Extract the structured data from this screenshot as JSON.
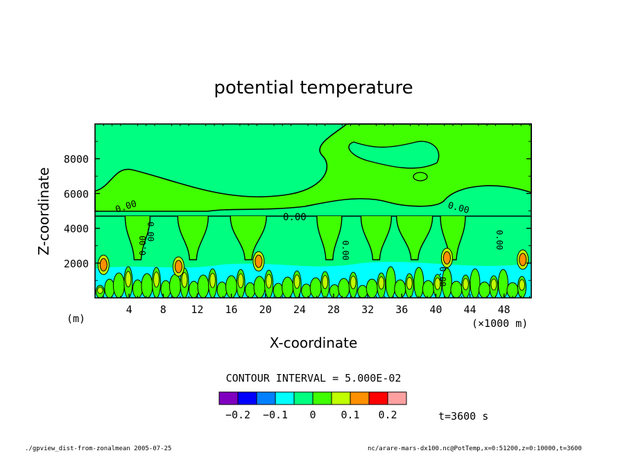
{
  "chart_data": {
    "type": "heatmap",
    "title": "potential temperature",
    "xlabel": "X-coordinate",
    "ylabel": "Z-coordinate",
    "x_unit_label": "(m)",
    "x_scale_label": "(×1000 m)",
    "xlim": [
      0,
      51.2
    ],
    "ylim": [
      0,
      10000
    ],
    "x_ticks": [
      4,
      8,
      12,
      16,
      20,
      24,
      28,
      32,
      36,
      40,
      44,
      48
    ],
    "y_ticks": [
      2000,
      4000,
      6000,
      8000
    ],
    "contour_line_labels": [
      "0.00",
      "0.00",
      "0.00",
      "0.00",
      "0.00",
      "0.00",
      "0.00",
      "0.00"
    ],
    "contour_interval_text": "CONTOUR INTERVAL = 5.000E-02",
    "colorbar": {
      "colors": [
        "#8000c0",
        "#0000ff",
        "#0080ff",
        "#00ffff",
        "#00ff80",
        "#40ff00",
        "#c0ff00",
        "#ff9000",
        "#ff0000",
        "#ffa0a0"
      ],
      "tick_values": [
        -0.2,
        -0.1,
        0,
        0.1,
        0.2
      ],
      "tick_labels": [
        "−0.2",
        "−0.1",
        "0",
        "0.1",
        "0.2"
      ]
    },
    "time_label": "t=3600 s"
  },
  "footer": {
    "left": "./gpview_dist-from-zonalmean  2005-07-25",
    "right": "nc/arare-mars-dx100.nc@PotTemp,x=0:51200,z=0:10000,t=3600"
  }
}
